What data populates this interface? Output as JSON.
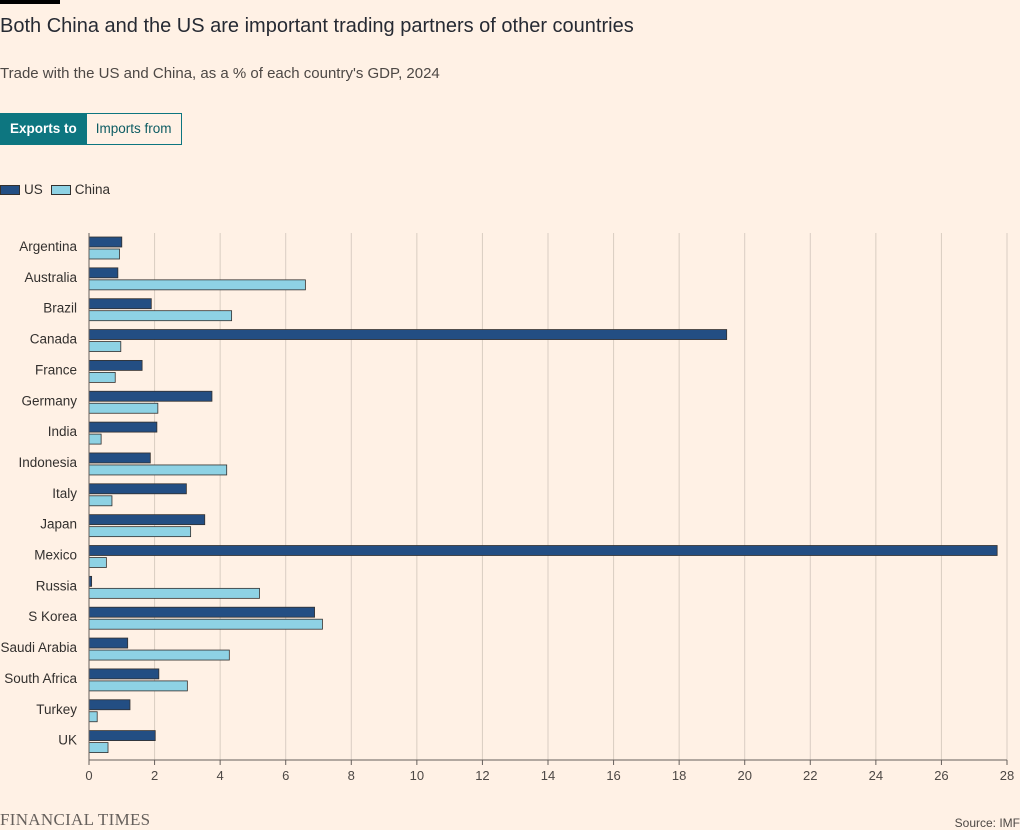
{
  "title": "Both China and the US are important trading partners of other countries",
  "subtitle": "Trade with the US and China, as a % of each country's GDP, 2024",
  "toggle": {
    "active_label": "Exports to",
    "inactive_label": "Imports from"
  },
  "footer": {
    "logo": "FINANCIAL TIMES",
    "source": "Source: IMF"
  },
  "colors": {
    "us": "#234e83",
    "china": "#8ed2e4",
    "background": "#fff1e5",
    "accent": "#0d7680"
  },
  "chart_data": {
    "type": "bar",
    "orientation": "horizontal",
    "categories": [
      "Argentina",
      "Australia",
      "Brazil",
      "Canada",
      "France",
      "Germany",
      "India",
      "Indonesia",
      "Italy",
      "Japan",
      "Mexico",
      "Russia",
      "S Korea",
      "Saudi Arabia",
      "South Africa",
      "Turkey",
      "UK"
    ],
    "series": [
      {
        "name": "US",
        "values": [
          1.0,
          0.88,
          1.9,
          19.45,
          1.62,
          3.75,
          2.07,
          1.87,
          2.97,
          3.53,
          27.7,
          0.08,
          6.88,
          1.18,
          2.13,
          1.25,
          2.02
        ]
      },
      {
        "name": "China",
        "values": [
          0.93,
          6.6,
          4.35,
          0.97,
          0.8,
          2.1,
          0.37,
          4.2,
          0.7,
          3.1,
          0.53,
          5.2,
          7.12,
          4.28,
          3.0,
          0.25,
          0.58
        ]
      }
    ],
    "xlim": [
      0,
      28
    ],
    "xticks": [
      0,
      2,
      4,
      6,
      8,
      10,
      12,
      14,
      16,
      18,
      20,
      22,
      24,
      26,
      28
    ],
    "grid": true,
    "legend": "top-left"
  }
}
